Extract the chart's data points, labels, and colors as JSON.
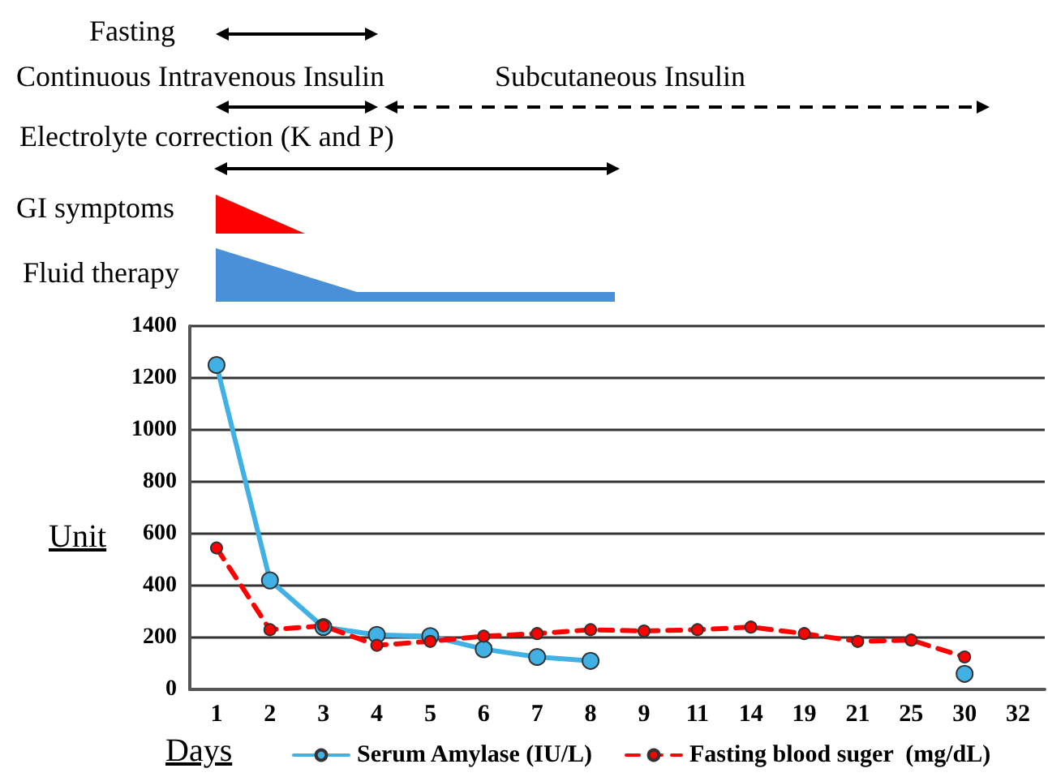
{
  "chart_data": {
    "type": "line",
    "xlabel": "Days",
    "ylabel": "Unit",
    "categories": [
      "1",
      "2",
      "3",
      "4",
      "5",
      "6",
      "7",
      "8",
      "9",
      "11",
      "14",
      "19",
      "21",
      "25",
      "30",
      "32"
    ],
    "series": [
      {
        "name": "Serum Amylase (IU/L)",
        "color": "#41b0e4",
        "line_style": "solid",
        "values": [
          1250,
          420,
          240,
          210,
          205,
          155,
          125,
          110,
          null,
          null,
          null,
          null,
          null,
          null,
          60,
          null
        ]
      },
      {
        "name": "Fasting blood suger  (mg/dL)",
        "color": "#ff0000",
        "line_style": "dashed",
        "values": [
          545,
          230,
          245,
          170,
          185,
          205,
          215,
          230,
          225,
          230,
          240,
          215,
          185,
          190,
          125,
          null
        ]
      }
    ],
    "ylim": [
      0,
      1400
    ],
    "yticks": [
      0,
      200,
      400,
      600,
      800,
      1000,
      1200,
      1400
    ],
    "grid": "y",
    "legend": "bottom",
    "marker": "circle",
    "annotations": [
      "Fasting",
      "Continuous Intravenous Insulin",
      "Subcutaneous Insulin",
      "Electrolyte correction (K and P)",
      "GI symptoms",
      "Fluid therapy"
    ]
  }
}
